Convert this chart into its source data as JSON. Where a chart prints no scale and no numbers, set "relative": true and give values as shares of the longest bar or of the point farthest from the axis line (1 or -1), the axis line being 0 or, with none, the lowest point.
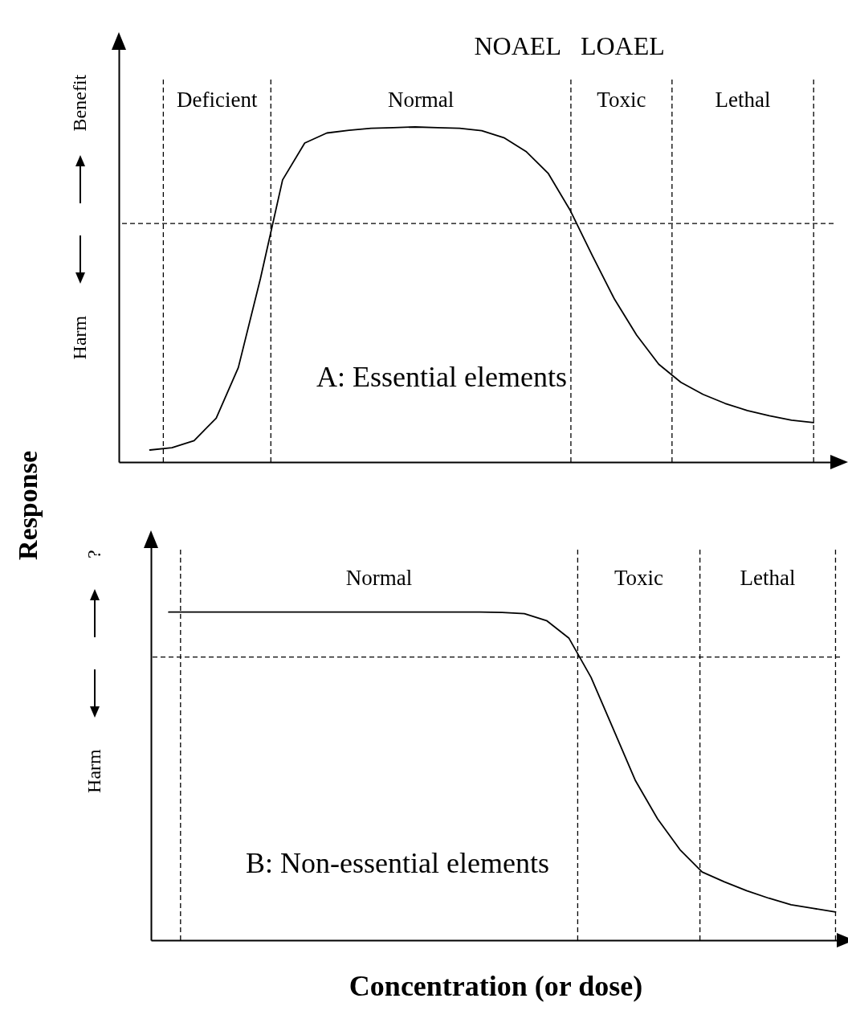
{
  "chart_data": [
    {
      "type": "line",
      "title": "A: Essential elements",
      "ylabel": "Response",
      "relative": true,
      "line_style": "solid",
      "categories": [
        null,
        null,
        null,
        null,
        null,
        null,
        null,
        null,
        null,
        null,
        null,
        null,
        null,
        null,
        null,
        null,
        null,
        null,
        null,
        null,
        null,
        null,
        null,
        null,
        null,
        null,
        null,
        null,
        null,
        null,
        null
      ],
      "series": [
        {
          "color": "#000000",
          "values": [
            0.036,
            0.043,
            0.064,
            0.131,
            0.282,
            0.548,
            0.842,
            0.952,
            0.982,
            0.99,
            0.996,
            0.998,
            1,
            0.998,
            0.996,
            0.989,
            0.968,
            0.927,
            0.862,
            0.751,
            0.616,
            0.486,
            0.379,
            0.292,
            0.238,
            0.202,
            0.175,
            0.154,
            0.138,
            0.125,
            0.118
          ]
        }
      ],
      "ref_lines": [
        {
          "axis": "y",
          "value": 0.712,
          "line_style": "dashed",
          "color": "#000000"
        }
      ],
      "annotations": [
        "Benefit",
        "Harm",
        "Deficient",
        "Normal",
        "Toxic",
        "Lethal",
        "NOAEL",
        "LOAEL"
      ]
    },
    {
      "type": "line",
      "title": "B: Non-essential elements",
      "xlabel": "Concentration (or dose)",
      "relative": true,
      "line_style": "solid",
      "categories": [
        null,
        null,
        null,
        null,
        null,
        null,
        null,
        null,
        null,
        null,
        null,
        null,
        null,
        null,
        null,
        null,
        null,
        null,
        null,
        null,
        null,
        null,
        null,
        null,
        null,
        null,
        null,
        null,
        null,
        null,
        null
      ],
      "series": [
        {
          "color": "#000000",
          "values": [
            1,
            1,
            1,
            1,
            1,
            1,
            1,
            1,
            1,
            1,
            1,
            1,
            1,
            1,
            1,
            0.999,
            0.995,
            0.974,
            0.921,
            0.801,
            0.644,
            0.486,
            0.369,
            0.276,
            0.208,
            0.178,
            0.151,
            0.128,
            0.108,
            0.097,
            0.086
          ]
        }
      ],
      "ref_lines": [
        {
          "axis": "y",
          "value": 0.863,
          "line_style": "dashed",
          "color": "#000000"
        }
      ],
      "annotations": [
        "?",
        "Harm",
        "Normal",
        "Toxic",
        "Lethal"
      ]
    }
  ]
}
